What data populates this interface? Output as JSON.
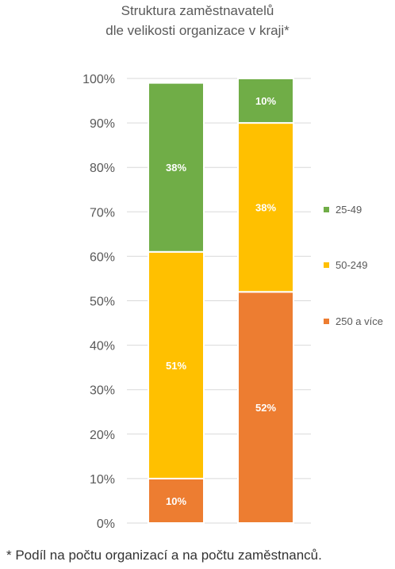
{
  "chart_data": {
    "type": "bar",
    "stacked": true,
    "percent": true,
    "title": [
      "Struktura zaměstnavatelů",
      "dle velikosti organizace v kraji*"
    ],
    "ylim": [
      0,
      100
    ],
    "yticks": [
      "0%",
      "10%",
      "20%",
      "30%",
      "40%",
      "50%",
      "60%",
      "70%",
      "80%",
      "90%",
      "100%"
    ],
    "grid": true,
    "legend_position": "right",
    "categories": [
      "",
      ""
    ],
    "series": [
      {
        "name": "250 a více",
        "color": "#ED7D31",
        "values": [
          10,
          52
        ],
        "labels": [
          "10%",
          "52%"
        ]
      },
      {
        "name": "50-249",
        "color": "#FFC000",
        "values": [
          51,
          38
        ],
        "labels": [
          "51%",
          "38%"
        ]
      },
      {
        "name": "25-49",
        "color": "#70AD47",
        "values": [
          38,
          10
        ],
        "labels": [
          "38%",
          "10%"
        ]
      }
    ],
    "legend_order": [
      2,
      1,
      0
    ]
  },
  "footnote": "* Podíl na počtu organizací a na počtu zaměstnanců."
}
